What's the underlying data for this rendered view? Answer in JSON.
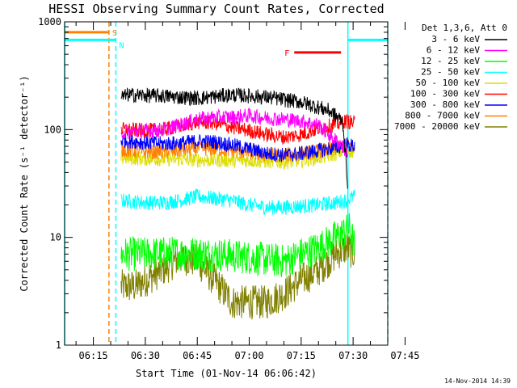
{
  "chart_data": {
    "type": "line",
    "title": "HESSI Observing Summary Count Rates, Corrected",
    "xlabel": "Start Time (01-Nov-14 06:06:42)",
    "ylabel": "Corrected Count Rate (s⁻¹ detector⁻¹)",
    "yscale": "log",
    "ylim": [
      1,
      1000
    ],
    "xlim_minutes": [
      6.7,
      100.0
    ],
    "x_ticks": [
      {
        "label": "06:15",
        "min": 15
      },
      {
        "label": "06:30",
        "min": 30
      },
      {
        "label": "06:45",
        "min": 45
      },
      {
        "label": "07:00",
        "min": 60
      },
      {
        "label": "07:15",
        "min": 75
      },
      {
        "label": "07:30",
        "min": 90
      },
      {
        "label": "07:45",
        "min": 105
      }
    ],
    "y_ticks": [
      {
        "label": "1",
        "value": 1
      },
      {
        "label": "10",
        "value": 10
      },
      {
        "label": "100",
        "value": 100
      },
      {
        "label": "1000",
        "value": 1000
      }
    ],
    "legend_header": "Det 1,3,6, Att 0",
    "legend_position": "right",
    "series": [
      {
        "name": "3 - 6 keV",
        "color": "#000000",
        "x": [
          23,
          25,
          35,
          45,
          55,
          65,
          75,
          83,
          87,
          88.5
        ],
        "y": [
          200,
          210,
          205,
          195,
          210,
          200,
          180,
          150,
          120,
          30
        ]
      },
      {
        "name": "6 - 12 keV",
        "color": "#ff00ff",
        "x": [
          23,
          25,
          35,
          40,
          45,
          50,
          55,
          60,
          65,
          70,
          75,
          80,
          83,
          87,
          88.5
        ],
        "y": [
          95,
          95,
          100,
          110,
          125,
          130,
          130,
          135,
          128,
          125,
          120,
          110,
          90,
          70,
          60
        ]
      },
      {
        "name": "12 - 25 keV",
        "color": "#00ff00",
        "x": [
          23,
          30,
          40,
          50,
          60,
          70,
          75,
          80,
          85,
          89,
          90.5
        ],
        "y": [
          7,
          7,
          7.2,
          7,
          6.5,
          6,
          7,
          8,
          10,
          12,
          8
        ]
      },
      {
        "name": "25 - 50 keV",
        "color": "#00ffff",
        "x": [
          23,
          30,
          35,
          40,
          45,
          50,
          55,
          60,
          65,
          70,
          75,
          80,
          85,
          88,
          90.5
        ],
        "y": [
          22,
          21,
          21,
          22,
          24,
          23,
          22,
          20,
          19,
          19,
          19.5,
          20,
          21,
          22,
          24
        ]
      },
      {
        "name": "50 - 100 keV",
        "color": "#dddd00",
        "x": [
          23,
          30,
          40,
          50,
          60,
          70,
          75,
          80,
          85,
          88,
          90.5
        ],
        "y": [
          55,
          54,
          53,
          52,
          52,
          50,
          52,
          55,
          60,
          65,
          62
        ]
      },
      {
        "name": "100 - 300 keV",
        "color": "#ff0000",
        "x": [
          23,
          30,
          35,
          40,
          45,
          50,
          55,
          60,
          65,
          70,
          75,
          80,
          85,
          88,
          90.5
        ],
        "y": [
          100,
          98,
          100,
          108,
          118,
          115,
          105,
          98,
          90,
          85,
          90,
          102,
          112,
          120,
          115
        ]
      },
      {
        "name": "300 - 800 keV",
        "color": "#0000ff",
        "x": [
          23,
          30,
          35,
          40,
          45,
          50,
          55,
          60,
          65,
          70,
          75,
          80,
          85,
          88,
          90.5
        ],
        "y": [
          80,
          76,
          74,
          75,
          78,
          77,
          72,
          66,
          60,
          58,
          60,
          64,
          68,
          72,
          70
        ]
      },
      {
        "name": "800 - 7000 keV",
        "color": "#ff8000",
        "x": [
          23,
          30,
          35,
          40,
          45,
          50,
          55,
          60,
          65,
          70,
          75,
          80,
          85,
          88,
          90.5
        ],
        "y": [
          65,
          62,
          62,
          64,
          67,
          66,
          64,
          61,
          58,
          58,
          60,
          63,
          67,
          72,
          68
        ]
      },
      {
        "name": "7000 - 20000 keV",
        "color": "#808000",
        "x": [
          23,
          27,
          30,
          35,
          40,
          45,
          50,
          55,
          60,
          65,
          70,
          75,
          80,
          85,
          88,
          90.5
        ],
        "y": [
          3.5,
          3.5,
          4,
          5,
          6.5,
          6,
          4,
          2.5,
          2.5,
          2.5,
          3,
          4,
          5,
          7,
          8,
          7
        ]
      }
    ],
    "markers": [
      {
        "label": "S",
        "color": "#ff8000",
        "start": 6.7,
        "end": 19.5,
        "y": 800
      },
      {
        "label": "N",
        "color": "#00ffff",
        "start": 6.7,
        "end": 21.5,
        "y": 680
      },
      {
        "label": "F",
        "color": "#ff0000",
        "start": 73,
        "end": 86.5,
        "y": 520
      },
      {
        "label": "",
        "color": "#00ffff",
        "start": 88.5,
        "end": 100,
        "y": 680
      }
    ],
    "vlines": [
      {
        "x": 6.7,
        "color": "#00ffff",
        "style": "solid"
      },
      {
        "x": 19.5,
        "color": "#ff8000",
        "style": "dashed"
      },
      {
        "x": 21.5,
        "color": "#00ffff",
        "style": "dashed"
      },
      {
        "x": 88.5,
        "color": "#00ffff",
        "style": "solid"
      },
      {
        "x": 100.0,
        "color": "#00ffff",
        "style": "dashed"
      }
    ],
    "timestamp": "14-Nov-2014 14:39"
  }
}
